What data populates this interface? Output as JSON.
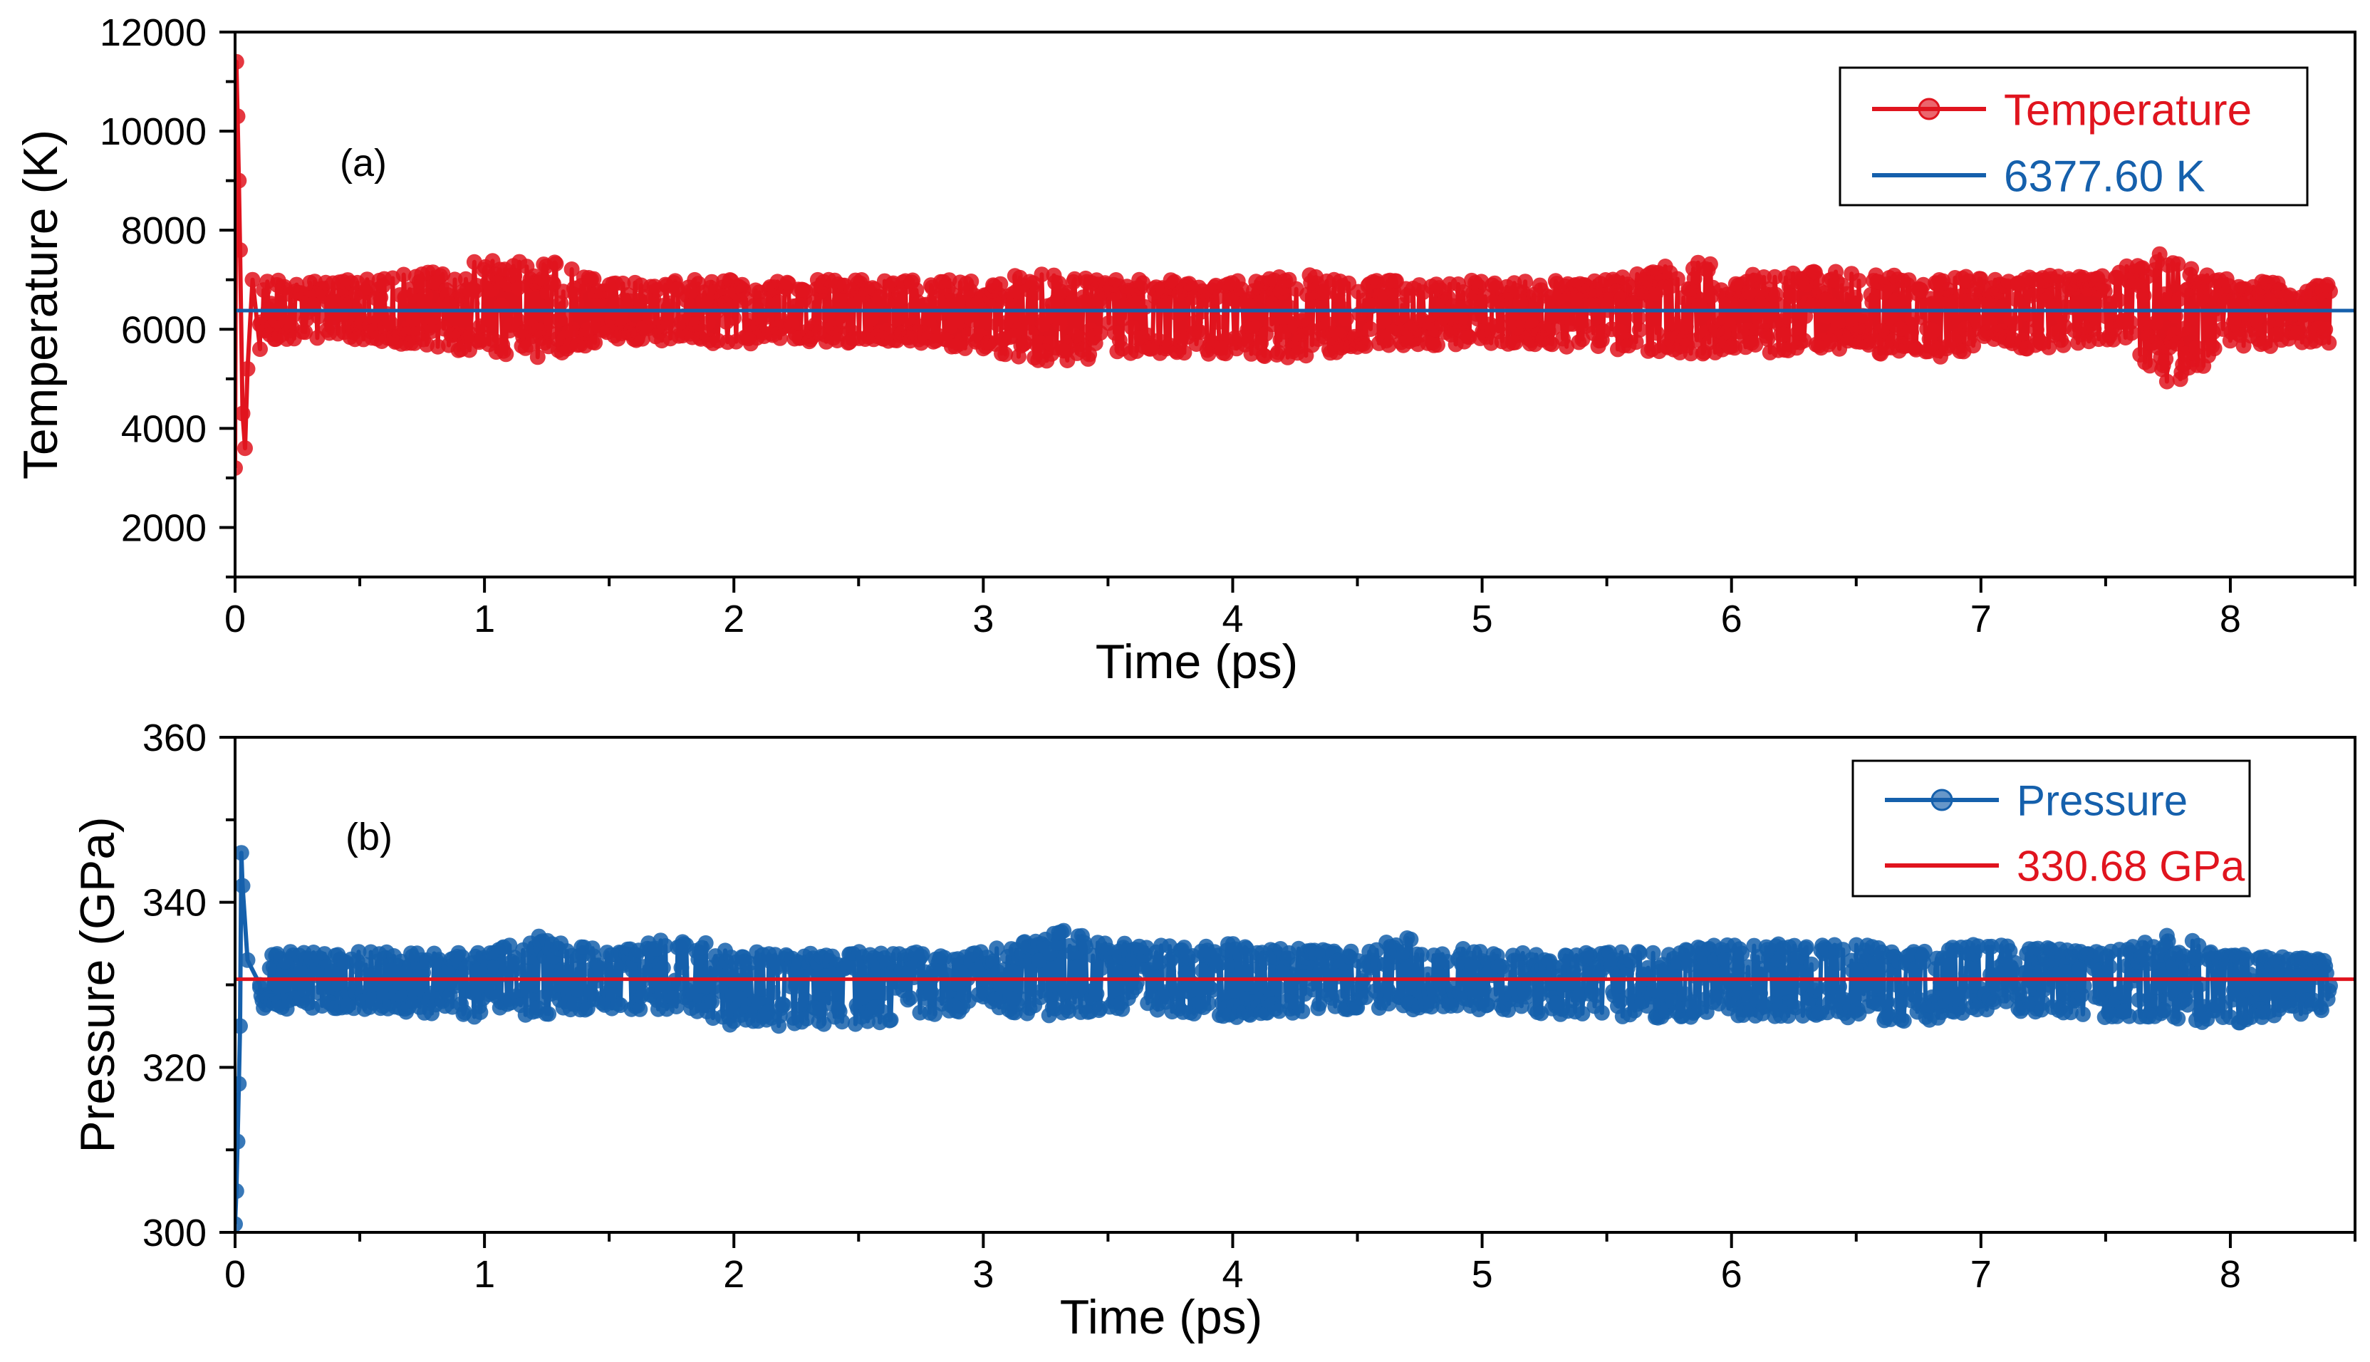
{
  "chart_data": [
    {
      "type": "scatter",
      "panel_label": "(a)",
      "xlabel": "Time (ps)",
      "ylabel": "Temperature (K)",
      "xlim": [
        0,
        8.5
      ],
      "ylim": [
        1000,
        12000
      ],
      "xticks": [
        0,
        1,
        2,
        3,
        4,
        5,
        6,
        7,
        8
      ],
      "yticks": [
        2000,
        4000,
        6000,
        8000,
        10000,
        12000
      ],
      "grid": false,
      "legend_position": "top-right",
      "series": [
        {
          "name": "Temperature",
          "kind": "line-with-markers",
          "color": "#e0141e",
          "initial_transient": [
            [
              0.0,
              3200
            ],
            [
              0.005,
              11400
            ],
            [
              0.01,
              10300
            ],
            [
              0.015,
              9000
            ],
            [
              0.02,
              7600
            ],
            [
              0.03,
              4300
            ],
            [
              0.04,
              3600
            ],
            [
              0.05,
              5200
            ],
            [
              0.07,
              7000
            ],
            [
              0.1,
              5600
            ]
          ],
          "mean": 6377.6,
          "fluctuation_envelope": {
            "x": [
              0.1,
              0.5,
              1.0,
              1.25,
              1.5,
              2.0,
              2.5,
              3.0,
              3.3,
              3.5,
              4.0,
              4.3,
              4.5,
              5.0,
              5.5,
              5.9,
              6.0,
              6.5,
              6.8,
              7.0,
              7.5,
              7.72,
              7.75,
              8.0,
              8.4
            ],
            "upper": [
              7000,
              7000,
              7400,
              7400,
              7000,
              7000,
              7000,
              7000,
              7200,
              7000,
              7000,
              7100,
              7000,
              7000,
              7000,
              7500,
              7100,
              7200,
              7000,
              7100,
              7100,
              7600,
              7400,
              7000,
              6900
            ],
            "lower": [
              5800,
              5800,
              5500,
              5400,
              5800,
              5700,
              5700,
              5600,
              5200,
              5500,
              5500,
              5400,
              5600,
              5700,
              5600,
              5400,
              5500,
              5600,
              5300,
              5600,
              5600,
              5100,
              4800,
              5600,
              5700
            ]
          }
        },
        {
          "name": "6377.60 K",
          "kind": "line",
          "color": "#1560ac",
          "y": 6377.6
        }
      ]
    },
    {
      "type": "scatter",
      "panel_label": "(b)",
      "xlabel": "Time (ps)",
      "ylabel": "Pressure (GPa)",
      "xlim": [
        0,
        8.5
      ],
      "ylim": [
        300,
        360
      ],
      "xticks": [
        0,
        1,
        2,
        3,
        4,
        5,
        6,
        7,
        8
      ],
      "yticks": [
        300,
        320,
        340,
        360
      ],
      "grid": false,
      "legend_position": "top-right",
      "series": [
        {
          "name": "Pressure",
          "kind": "line-with-markers",
          "color": "#1560ac",
          "initial_transient": [
            [
              0.0,
              301
            ],
            [
              0.005,
              305
            ],
            [
              0.01,
              311
            ],
            [
              0.015,
              318
            ],
            [
              0.02,
              325
            ],
            [
              0.025,
              346
            ],
            [
              0.03,
              342
            ],
            [
              0.05,
              333
            ],
            [
              0.1,
              330
            ]
          ],
          "mean": 330.68,
          "fluctuation_envelope": {
            "x": [
              0.1,
              0.5,
              1.0,
              1.2,
              1.5,
              1.8,
              2.0,
              2.5,
              3.0,
              3.33,
              3.5,
              4.0,
              4.5,
              4.7,
              5.0,
              5.5,
              6.0,
              6.5,
              6.7,
              7.0,
              7.5,
              7.72,
              8.0,
              8.4
            ],
            "upper": [
              334,
              334,
              334,
              336,
              334,
              336,
              334,
              334,
              334,
              337,
              335,
              335,
              334,
              336,
              334,
              334,
              335,
              335,
              334,
              335,
              334,
              337,
              334,
              333
            ],
            "lower": [
              327,
              327,
              326,
              326,
              327,
              327,
              325,
              325,
              327,
              326,
              327,
              326,
              327,
              327,
              327,
              326,
              326,
              326,
              325,
              327,
              326,
              326,
              325,
              327
            ]
          }
        },
        {
          "name": "330.68 GPa",
          "kind": "line",
          "color": "#e0141e",
          "y": 330.68
        }
      ]
    }
  ]
}
